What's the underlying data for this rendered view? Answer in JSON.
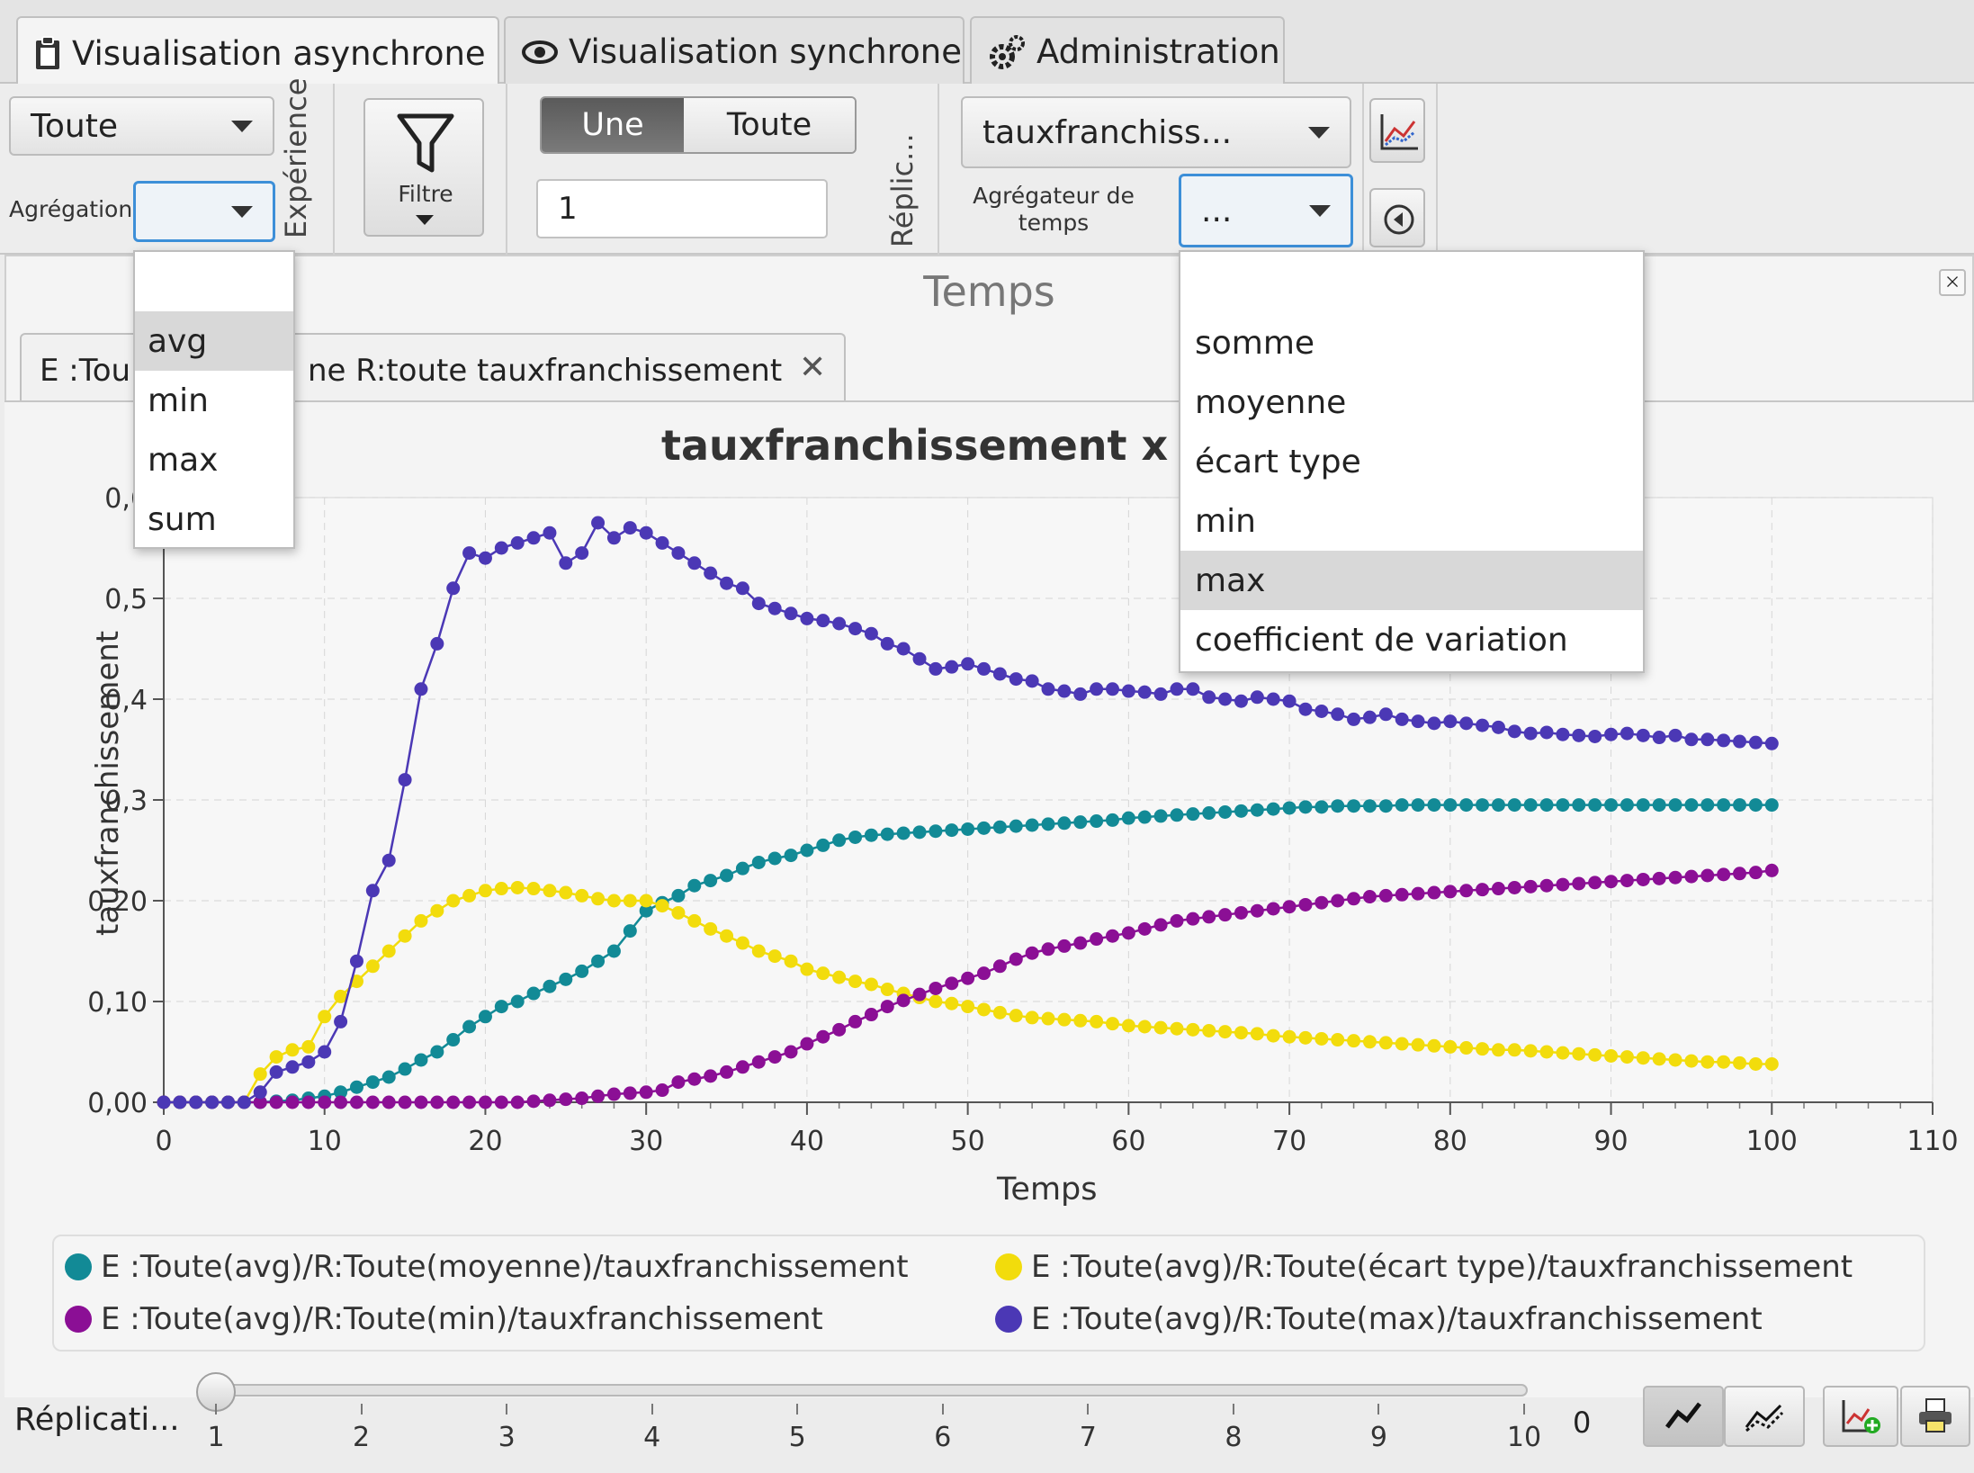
{
  "tabs": [
    {
      "label": "Visualisation asynchrone",
      "icon": "clipboard-icon",
      "active": true
    },
    {
      "label": "Visualisation synchrone",
      "icon": "eye-icon",
      "active": false
    },
    {
      "label": "Administration",
      "icon": "gears-icon",
      "active": false
    }
  ],
  "toolbar": {
    "experience_combo": "Toute",
    "aggregation_label": "Agrégation",
    "experience_vlabel": "Expérience",
    "filter_label": "Filtre",
    "toggle_one": "Une",
    "toggle_all": "Toute",
    "replication_input": "1",
    "replication_vlabel": "Réplic...",
    "variable_combo": "tauxfranchiss...",
    "time_aggregator_label_1": "Agrégateur de",
    "time_aggregator_label_2": "temps",
    "time_aggregator_value": "..."
  },
  "aggregation_dropdown": {
    "items": [
      "",
      "avg",
      "min",
      "max",
      "sum"
    ],
    "selected": "avg"
  },
  "time_aggregator_dropdown": {
    "items": [
      "",
      "somme",
      "moyenne",
      "écart type",
      "min",
      "max",
      "coefficient de variation"
    ],
    "selected": "max"
  },
  "panel": {
    "title": "Temps",
    "chart_tab_left": "E :Tou",
    "chart_tab_right": "ne R:toute tauxfranchissement",
    "chart_title_visible": "tauxfranchissement x T"
  },
  "bottom": {
    "slider_label": "Réplicati...",
    "slider_ticks": [
      "1",
      "2",
      "3",
      "4",
      "5",
      "6",
      "7",
      "8",
      "9",
      "10"
    ],
    "slider_value": "0"
  },
  "colors": {
    "teal": "#128a96",
    "yellow": "#f2dc0c",
    "purple": "#8b0f95",
    "indigo": "#4b38b5"
  },
  "chart_data": {
    "type": "line",
    "title": "tauxfranchissement x Temps",
    "xlabel": "Temps",
    "ylabel": "tauxfranchissement",
    "xlim": [
      0,
      110
    ],
    "ylim": [
      0,
      0.6
    ],
    "x_ticks": [
      "0",
      "10",
      "20",
      "30",
      "40",
      "50",
      "60",
      "70",
      "80",
      "90",
      "100",
      "110"
    ],
    "y_ticks": [
      "0,00",
      "0,10",
      "0,20",
      "0,3",
      "0,4",
      "0,5",
      "0,6"
    ],
    "grid": true,
    "legend_position": "bottom",
    "series": [
      {
        "name": "E :Toute(avg)/R:Toute(moyenne)/tauxfranchissement",
        "color": "#128a96",
        "values": [
          0.0,
          0.0,
          0.0,
          0.0,
          0.0,
          0.0,
          0.0,
          0.001,
          0.002,
          0.004,
          0.006,
          0.01,
          0.015,
          0.02,
          0.025,
          0.033,
          0.042,
          0.05,
          0.062,
          0.075,
          0.085,
          0.095,
          0.1,
          0.108,
          0.115,
          0.122,
          0.13,
          0.14,
          0.15,
          0.17,
          0.19,
          0.198,
          0.205,
          0.215,
          0.22,
          0.225,
          0.232,
          0.238,
          0.242,
          0.245,
          0.25,
          0.255,
          0.26,
          0.263,
          0.265,
          0.266,
          0.267,
          0.268,
          0.269,
          0.27,
          0.271,
          0.272,
          0.273,
          0.274,
          0.275,
          0.276,
          0.277,
          0.278,
          0.279,
          0.28,
          0.282,
          0.283,
          0.284,
          0.285,
          0.286,
          0.287,
          0.288,
          0.289,
          0.29,
          0.291,
          0.292,
          0.293,
          0.293,
          0.294,
          0.294,
          0.294,
          0.294,
          0.295,
          0.295,
          0.295,
          0.295,
          0.295,
          0.295,
          0.295,
          0.295,
          0.295,
          0.295,
          0.295,
          0.295,
          0.295,
          0.295,
          0.295,
          0.295,
          0.295,
          0.295,
          0.295,
          0.295,
          0.295,
          0.295,
          0.295,
          0.295
        ]
      },
      {
        "name": "E :Toute(avg)/R:Toute(écart type)/tauxfranchissement",
        "color": "#f2dc0c",
        "values": [
          0.0,
          0.0,
          0.0,
          0.0,
          0.0,
          0.0,
          0.028,
          0.045,
          0.052,
          0.055,
          0.085,
          0.105,
          0.12,
          0.135,
          0.15,
          0.165,
          0.18,
          0.19,
          0.2,
          0.205,
          0.21,
          0.212,
          0.213,
          0.212,
          0.21,
          0.208,
          0.205,
          0.202,
          0.2,
          0.2,
          0.2,
          0.195,
          0.188,
          0.18,
          0.172,
          0.165,
          0.158,
          0.15,
          0.145,
          0.14,
          0.132,
          0.128,
          0.124,
          0.12,
          0.117,
          0.112,
          0.108,
          0.104,
          0.1,
          0.098,
          0.095,
          0.092,
          0.089,
          0.086,
          0.084,
          0.083,
          0.082,
          0.081,
          0.08,
          0.078,
          0.076,
          0.075,
          0.074,
          0.073,
          0.072,
          0.071,
          0.07,
          0.069,
          0.068,
          0.066,
          0.065,
          0.064,
          0.063,
          0.062,
          0.061,
          0.06,
          0.059,
          0.058,
          0.057,
          0.056,
          0.055,
          0.054,
          0.053,
          0.052,
          0.052,
          0.051,
          0.05,
          0.049,
          0.048,
          0.047,
          0.046,
          0.045,
          0.044,
          0.043,
          0.042,
          0.041,
          0.04,
          0.04,
          0.039,
          0.038,
          0.038
        ]
      },
      {
        "name": "E :Toute(avg)/R:Toute(min)/tauxfranchissement",
        "color": "#8b0f95",
        "values": [
          0.0,
          0.0,
          0.0,
          0.0,
          0.0,
          0.0,
          0.0,
          0.0,
          0.0,
          0.0,
          0.0,
          0.0,
          0.0,
          0.0,
          0.0,
          0.0,
          0.0,
          0.0,
          0.0,
          0.0,
          0.0,
          0.0,
          0.0,
          0.001,
          0.002,
          0.003,
          0.004,
          0.006,
          0.008,
          0.009,
          0.01,
          0.012,
          0.02,
          0.023,
          0.026,
          0.03,
          0.035,
          0.04,
          0.045,
          0.05,
          0.058,
          0.065,
          0.072,
          0.08,
          0.087,
          0.095,
          0.101,
          0.107,
          0.113,
          0.118,
          0.123,
          0.128,
          0.135,
          0.142,
          0.148,
          0.152,
          0.155,
          0.158,
          0.162,
          0.165,
          0.168,
          0.172,
          0.176,
          0.18,
          0.182,
          0.184,
          0.186,
          0.188,
          0.19,
          0.192,
          0.194,
          0.196,
          0.198,
          0.2,
          0.202,
          0.204,
          0.205,
          0.206,
          0.207,
          0.208,
          0.209,
          0.21,
          0.211,
          0.212,
          0.213,
          0.214,
          0.215,
          0.216,
          0.217,
          0.218,
          0.219,
          0.22,
          0.221,
          0.222,
          0.223,
          0.224,
          0.225,
          0.226,
          0.227,
          0.228,
          0.23
        ]
      },
      {
        "name": "E :Toute(avg)/R:Toute(max)/tauxfranchissement",
        "color": "#4b38b5",
        "values": [
          0.0,
          0.0,
          0.0,
          0.0,
          0.0,
          0.0,
          0.01,
          0.03,
          0.035,
          0.04,
          0.05,
          0.08,
          0.14,
          0.21,
          0.24,
          0.32,
          0.41,
          0.455,
          0.51,
          0.545,
          0.54,
          0.55,
          0.555,
          0.56,
          0.565,
          0.535,
          0.545,
          0.575,
          0.56,
          0.57,
          0.565,
          0.555,
          0.545,
          0.535,
          0.525,
          0.515,
          0.51,
          0.495,
          0.49,
          0.485,
          0.48,
          0.478,
          0.475,
          0.47,
          0.465,
          0.455,
          0.45,
          0.44,
          0.43,
          0.432,
          0.435,
          0.43,
          0.425,
          0.42,
          0.418,
          0.41,
          0.408,
          0.405,
          0.41,
          0.41,
          0.408,
          0.407,
          0.405,
          0.41,
          0.41,
          0.402,
          0.4,
          0.398,
          0.402,
          0.4,
          0.398,
          0.39,
          0.388,
          0.385,
          0.38,
          0.382,
          0.385,
          0.38,
          0.378,
          0.376,
          0.378,
          0.376,
          0.374,
          0.372,
          0.368,
          0.366,
          0.367,
          0.365,
          0.364,
          0.363,
          0.365,
          0.366,
          0.364,
          0.362,
          0.364,
          0.36,
          0.36,
          0.359,
          0.358,
          0.357,
          0.356
        ]
      }
    ]
  }
}
